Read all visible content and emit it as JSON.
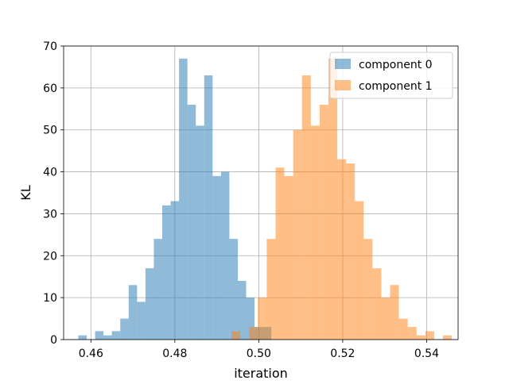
{
  "chart_data": {
    "type": "bar",
    "subtype": "histogram",
    "title": "",
    "xlabel": "iteration",
    "ylabel": "KL",
    "xlim": [
      0.4535,
      0.5475
    ],
    "ylim": [
      0,
      70
    ],
    "xticks": [
      0.46,
      0.48,
      0.5,
      0.52,
      0.54
    ],
    "xtick_labels": [
      "0.46",
      "0.48",
      "0.50",
      "0.52",
      "0.54"
    ],
    "yticks": [
      0,
      10,
      20,
      30,
      40,
      50,
      60,
      70
    ],
    "ytick_labels": [
      "0",
      "10",
      "20",
      "30",
      "40",
      "50",
      "60",
      "70"
    ],
    "grid": true,
    "legend_position": "top-right",
    "series": [
      {
        "name": "component 0",
        "color": "#1f77b4",
        "opacity": 0.5,
        "bin_start": 0.457,
        "bin_width": 0.002,
        "counts": [
          1,
          0,
          2,
          1,
          2,
          5,
          13,
          9,
          17,
          24,
          32,
          33,
          67,
          56,
          51,
          63,
          39,
          40,
          24,
          14,
          10,
          3,
          3
        ]
      },
      {
        "name": "component 1",
        "color": "#ff7f0e",
        "opacity": 0.5,
        "bin_start": 0.4935,
        "bin_width": 0.0021,
        "counts": [
          2,
          0,
          3,
          10,
          24,
          41,
          39,
          50,
          63,
          51,
          56,
          67,
          43,
          42,
          33,
          24,
          17,
          10,
          13,
          5,
          3,
          1,
          2,
          0,
          1
        ]
      }
    ]
  }
}
